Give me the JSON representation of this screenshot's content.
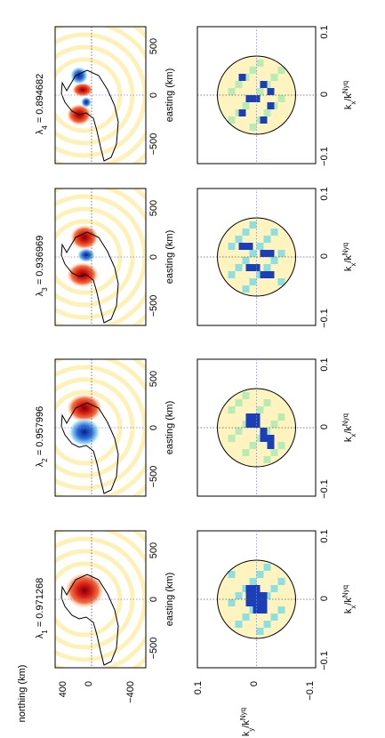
{
  "chart_data": {
    "type": "heatmap",
    "orientation": "rotated 90 degrees counter-clockwise",
    "grid": "2 rows x 4 columns",
    "spatial_axes": {
      "easting_label": "easting (km)",
      "northing_label": "northing (km)",
      "easting_ticks": [
        "−500",
        "0",
        "500"
      ],
      "northing_ticks": [
        "400",
        "0",
        "−400"
      ]
    },
    "spectral_axes": {
      "kx_label_main": "k",
      "kx_label_sub": "x",
      "kx_label_sep": "/k",
      "kx_label_subsup_sub": "x",
      "kx_label_sup": "Nyq",
      "ky_label_main": "k",
      "ky_label_sub": "y",
      "ky_label_sep": "/k",
      "ky_label_subsup_sub": "y",
      "ky_label_sup": "Nyq",
      "kx_ticks": [
        "−0.1",
        "0",
        "0.1"
      ],
      "ky_ticks": [
        "0.1",
        "0",
        "−0.1"
      ]
    },
    "eigenvalues": [
      {
        "symbol": "λ",
        "index": "1",
        "eq": " = ",
        "value": "0.971268"
      },
      {
        "symbol": "λ",
        "index": "2",
        "eq": " = ",
        "value": "0.957996"
      },
      {
        "symbol": "λ",
        "index": "3",
        "eq": " = ",
        "value": "0.936969"
      },
      {
        "symbol": "λ",
        "index": "4",
        "eq": " = ",
        "value": "0.894682"
      }
    ],
    "colormap": "jet",
    "colors": {
      "red": "#c8102e",
      "blue": "#1a3fb8",
      "yellow": "#fff4c0",
      "cyan": "#8ee0e0",
      "green": "#b9ecb4"
    }
  }
}
